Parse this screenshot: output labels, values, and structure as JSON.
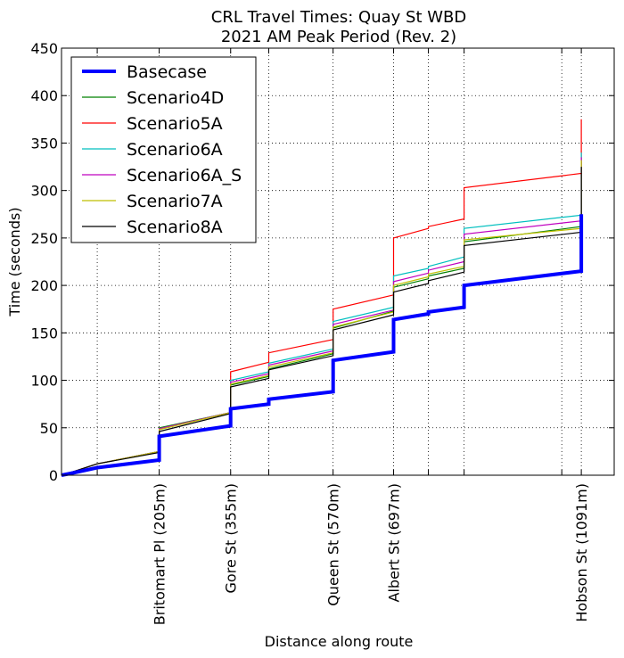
{
  "chart_data": {
    "type": "line",
    "title": "CRL Travel Times: Quay St WBD",
    "subtitle": "2021 AM Peak Period (Rev. 2)",
    "xlabel": "Distance along route",
    "ylabel": "Time (seconds)",
    "xlim": [
      0,
      1160
    ],
    "ylim": [
      0,
      450
    ],
    "yticks": [
      0,
      50,
      100,
      150,
      200,
      250,
      300,
      350,
      400,
      450
    ],
    "grid": true,
    "legend_position": "top-left",
    "x_gridlines": [
      75,
      205,
      355,
      435,
      570,
      697,
      770,
      845,
      1050,
      1091
    ],
    "x_tick_labels": [
      {
        "x": 205,
        "label": "Britomart Pl (205m)"
      },
      {
        "x": 355,
        "label": "Gore St (355m)"
      },
      {
        "x": 570,
        "label": "Queen St (570m)"
      },
      {
        "x": 697,
        "label": "Albert St (697m)"
      },
      {
        "x": 1091,
        "label": "Hobson St (1091m)"
      }
    ],
    "series": [
      {
        "name": "Basecase",
        "color": "#0000ff",
        "width": 4,
        "x": [
          0,
          20,
          75,
          205,
          205,
          355,
          355,
          435,
          435,
          570,
          570,
          697,
          697,
          770,
          770,
          845,
          845,
          1091,
          1091
        ],
        "y": [
          0,
          2,
          8,
          16,
          41,
          52,
          70,
          75,
          80,
          88,
          121,
          130,
          164,
          170,
          172,
          177,
          200,
          215,
          275
        ]
      },
      {
        "name": "Scenario4D",
        "color": "#008000",
        "width": 1.2,
        "x": [
          0,
          20,
          75,
          205,
          205,
          355,
          355,
          435,
          435,
          570,
          570,
          697,
          697,
          770,
          770,
          845,
          845,
          1091,
          1091
        ],
        "y": [
          0,
          3,
          12,
          25,
          50,
          66,
          95,
          104,
          112,
          128,
          155,
          173,
          198,
          207,
          210,
          218,
          246,
          262,
          330
        ]
      },
      {
        "name": "Scenario5A",
        "color": "#ff0000",
        "width": 1.2,
        "x": [
          0,
          20,
          75,
          205,
          205,
          355,
          355,
          435,
          435,
          570,
          570,
          697,
          697,
          770,
          770,
          845,
          845,
          1091,
          1091
        ],
        "y": [
          0,
          3,
          12,
          25,
          49,
          66,
          109,
          119,
          129,
          143,
          175,
          190,
          250,
          260,
          262,
          270,
          303,
          318,
          375
        ]
      },
      {
        "name": "Scenario6A",
        "color": "#00bfbf",
        "width": 1.2,
        "x": [
          0,
          20,
          75,
          205,
          205,
          355,
          355,
          435,
          435,
          570,
          570,
          697,
          697,
          770,
          770,
          845,
          845,
          1091,
          1091
        ],
        "y": [
          0,
          3,
          12,
          25,
          49,
          66,
          100,
          109,
          118,
          133,
          162,
          177,
          210,
          218,
          220,
          230,
          260,
          274,
          340
        ]
      },
      {
        "name": "Scenario6A_S",
        "color": "#bf00bf",
        "width": 1.2,
        "x": [
          0,
          20,
          75,
          205,
          205,
          355,
          355,
          435,
          435,
          570,
          570,
          697,
          697,
          770,
          770,
          845,
          845,
          1091,
          1091
        ],
        "y": [
          0,
          3,
          12,
          25,
          49,
          66,
          98,
          107,
          116,
          131,
          159,
          174,
          204,
          213,
          216,
          225,
          254,
          268,
          335
        ]
      },
      {
        "name": "Scenario7A",
        "color": "#bfbf00",
        "width": 1.2,
        "x": [
          0,
          20,
          75,
          205,
          205,
          355,
          355,
          435,
          435,
          570,
          570,
          697,
          697,
          770,
          770,
          845,
          845,
          1091,
          1091
        ],
        "y": [
          0,
          3,
          12,
          25,
          48,
          66,
          96,
          105,
          114,
          129,
          156,
          172,
          200,
          209,
          212,
          220,
          248,
          260,
          332
        ]
      },
      {
        "name": "Scenario8A",
        "color": "#000000",
        "width": 1.2,
        "x": [
          0,
          20,
          75,
          205,
          205,
          355,
          355,
          435,
          435,
          570,
          570,
          697,
          697,
          770,
          770,
          845,
          845,
          1091,
          1091
        ],
        "y": [
          0,
          3,
          12,
          24,
          46,
          65,
          93,
          102,
          111,
          126,
          153,
          169,
          193,
          202,
          205,
          214,
          242,
          256,
          325
        ]
      }
    ]
  }
}
